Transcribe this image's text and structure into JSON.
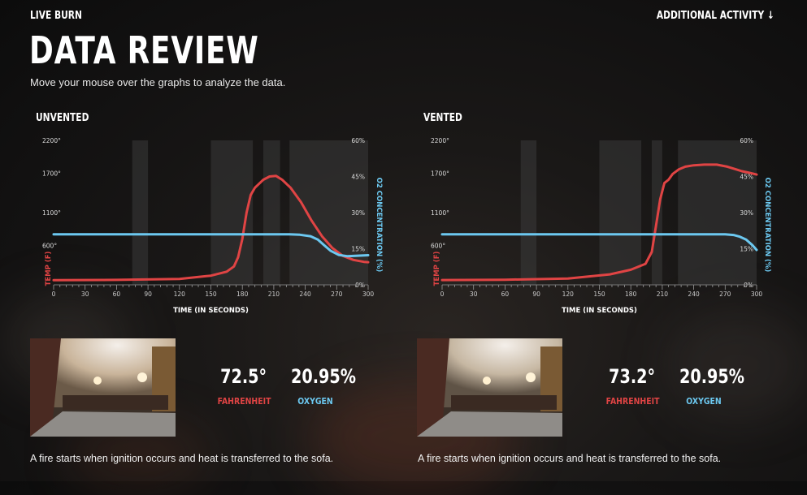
{
  "header": {
    "section": "LIVE BURN",
    "activity_link": "ADDITIONAL ACTIVITY ↓",
    "title": "DATA REVIEW",
    "subtitle": "Move your mouse over the graphs to analyze the data."
  },
  "colors": {
    "temp": "#e04444",
    "oxygen": "#6cc8f0",
    "band": "#3a3a3a"
  },
  "panels": [
    {
      "label": "UNVENTED",
      "temp_value": "72.5°",
      "temp_label": "FAHRENHEIT",
      "oxygen_value": "20.95%",
      "oxygen_label": "OXYGEN",
      "caption": "A fire starts when ignition occurs and heat is transferred to the sofa."
    },
    {
      "label": "VENTED",
      "temp_value": "73.2°",
      "temp_label": "FAHRENHEIT",
      "oxygen_value": "20.95%",
      "oxygen_label": "OXYGEN",
      "caption": "A fire starts when ignition occurs and heat is transferred to the sofa."
    }
  ],
  "chart_data": [
    {
      "type": "line",
      "title": "UNVENTED",
      "xlabel": "TIME (IN SECONDS)",
      "ylabel": "TEMP (F)",
      "y2label": "O2 CONCENTRATION (%)",
      "xlim": [
        0,
        300
      ],
      "ylim": [
        0,
        2200
      ],
      "y2lim": [
        0,
        60
      ],
      "x_ticks": [
        "0",
        "30",
        "60",
        "90",
        "120",
        "150",
        "180",
        "210",
        "240",
        "270",
        "300"
      ],
      "y_ticks": [
        "2200°",
        "1700°",
        "1100°",
        "600°"
      ],
      "y2_ticks": [
        "60%",
        "45%",
        "30%",
        "15%",
        "0%"
      ],
      "shaded_bands": [
        [
          75,
          90
        ],
        [
          150,
          190
        ],
        [
          200,
          216
        ],
        [
          225,
          300
        ]
      ],
      "series": [
        {
          "name": "TEMP (F)",
          "axis": "left",
          "x": [
            0,
            60,
            120,
            150,
            165,
            172,
            176,
            180,
            184,
            188,
            192,
            196,
            200,
            206,
            212,
            218,
            226,
            236,
            246,
            256,
            266,
            276,
            286,
            296,
            300
          ],
          "y": [
            72,
            75,
            90,
            140,
            200,
            280,
            420,
            700,
            1100,
            1370,
            1480,
            1540,
            1600,
            1650,
            1660,
            1600,
            1480,
            1260,
            980,
            740,
            560,
            440,
            380,
            350,
            345
          ]
        },
        {
          "name": "O2 CONCENTRATION (%)",
          "axis": "right",
          "x": [
            0,
            90,
            180,
            225,
            235,
            245,
            252,
            258,
            264,
            272,
            280,
            290,
            300
          ],
          "y": [
            20.95,
            20.95,
            20.95,
            20.95,
            20.8,
            20.2,
            18.8,
            16.5,
            14.2,
            12.4,
            11.9,
            12.1,
            12.3
          ]
        }
      ]
    },
    {
      "type": "line",
      "title": "VENTED",
      "xlabel": "TIME (IN SECONDS)",
      "ylabel": "TEMP (F)",
      "y2label": "O2 CONCENTRATION (%)",
      "xlim": [
        0,
        300
      ],
      "ylim": [
        0,
        2200
      ],
      "y2lim": [
        0,
        60
      ],
      "x_ticks": [
        "0",
        "30",
        "60",
        "90",
        "120",
        "150",
        "180",
        "210",
        "240",
        "270",
        "300"
      ],
      "y_ticks": [
        "2200°",
        "1700°",
        "1100°",
        "600°"
      ],
      "y2_ticks": [
        "60%",
        "45%",
        "30%",
        "15%",
        "0%"
      ],
      "shaded_bands": [
        [
          75,
          90
        ],
        [
          150,
          190
        ],
        [
          200,
          210
        ],
        [
          225,
          300
        ]
      ],
      "series": [
        {
          "name": "TEMP (F)",
          "axis": "left",
          "x": [
            0,
            60,
            120,
            160,
            180,
            194,
            200,
            204,
            208,
            212,
            216,
            220,
            226,
            232,
            240,
            250,
            262,
            272,
            280,
            286,
            292,
            300
          ],
          "y": [
            73,
            78,
            95,
            160,
            230,
            320,
            500,
            900,
            1300,
            1550,
            1600,
            1690,
            1760,
            1800,
            1820,
            1830,
            1830,
            1800,
            1760,
            1730,
            1710,
            1680
          ]
        },
        {
          "name": "O2 CONCENTRATION (%)",
          "axis": "right",
          "x": [
            0,
            100,
            200,
            270,
            278,
            284,
            290,
            296,
            300
          ],
          "y": [
            20.95,
            20.95,
            20.95,
            20.95,
            20.7,
            20.0,
            18.8,
            16.5,
            14.5
          ]
        }
      ]
    }
  ]
}
